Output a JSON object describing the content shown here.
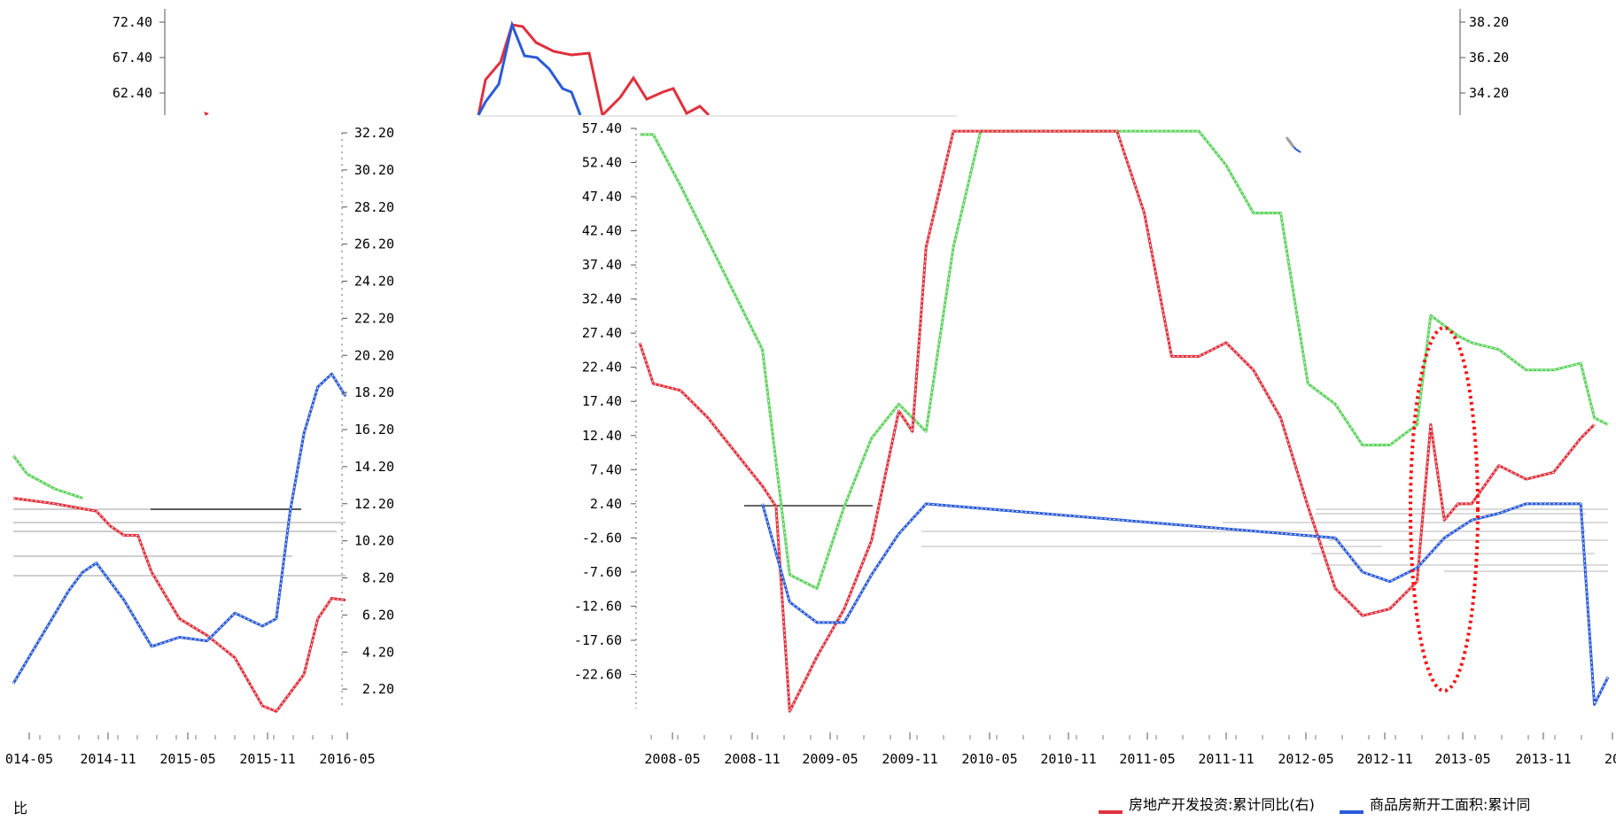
{
  "chart_data": [
    {
      "id": "left_top",
      "type": "line",
      "y_ticks": [
        "72.40",
        "67.40",
        "62.40"
      ]
    },
    {
      "id": "left",
      "type": "line",
      "y_ticks": [
        "32.20",
        "30.20",
        "28.20",
        "26.20",
        "24.20",
        "22.20",
        "20.20",
        "18.20",
        "16.20",
        "14.20",
        "12.20",
        "10.20",
        "8.20",
        "6.20",
        "4.20",
        "2.20"
      ],
      "ylim": [
        0.2,
        32.2
      ],
      "x_ticks": [
        "014-05",
        "2014-11",
        "2015-05",
        "2015-11",
        "2016-05"
      ],
      "series": [
        {
          "color": "#e0303c",
          "x": [
            "2014-05",
            "2014-08",
            "2014-11",
            "2014-12",
            "2015-01",
            "2015-02",
            "2015-03",
            "2015-05",
            "2015-07",
            "2015-09",
            "2015-11",
            "2015-12",
            "2016-01",
            "2016-02",
            "2016-03",
            "2016-04",
            "2016-05"
          ],
          "values": [
            12.5,
            12.2,
            11.8,
            11.0,
            10.5,
            10.5,
            8.5,
            6.0,
            5.1,
            3.9,
            1.3,
            1.0,
            2.0,
            3.0,
            6.0,
            7.1,
            7.0
          ]
        },
        {
          "color": "#2a5ad7",
          "x": [
            "2014-05",
            "2014-07",
            "2014-09",
            "2014-10",
            "2014-11",
            "2015-01",
            "2015-03",
            "2015-05",
            "2015-07",
            "2015-09",
            "2015-11",
            "2015-12",
            "2016-01",
            "2016-02",
            "2016-03",
            "2016-04",
            "2016-05"
          ],
          "values": [
            2.5,
            5.0,
            7.5,
            8.5,
            9.0,
            7.0,
            4.5,
            5.0,
            4.8,
            6.3,
            5.6,
            6.0,
            11.8,
            16.0,
            18.5,
            19.2,
            18.0
          ]
        },
        {
          "color": "#5ed25e",
          "x": [
            "2014-05",
            "2014-06",
            "2014-08",
            "2014-10"
          ],
          "values": [
            14.8,
            13.8,
            13.0,
            12.5
          ]
        }
      ]
    },
    {
      "id": "right_top",
      "type": "line",
      "y_ticks": [
        "38.20",
        "36.20",
        "34.20"
      ]
    },
    {
      "id": "main",
      "type": "line",
      "y_ticks": [
        "57.40",
        "52.40",
        "47.40",
        "42.40",
        "37.40",
        "32.40",
        "27.40",
        "22.40",
        "17.40",
        "12.40",
        "7.40",
        "2.40",
        "-2.60",
        "-7.60",
        "-12.60",
        "-17.60",
        "-22.60"
      ],
      "ylim": [
        -27.6,
        57.4
      ],
      "x_ticks": [
        "2008-05",
        "2008-11",
        "2009-05",
        "2009-11",
        "2010-05",
        "2010-11",
        "2011-05",
        "2011-11",
        "2012-05",
        "2012-11",
        "2013-05",
        "2013-11",
        "20"
      ],
      "legend": [
        {
          "label": "房地产开发投资:累计同比(右)",
          "color": "#e0303c"
        },
        {
          "label": "商品房新开工面积:累计同",
          "color": "#2a5ad7"
        }
      ],
      "annotation": "dotted red ellipse around 2013-03",
      "series": [
        {
          "color": "#5ed25e",
          "x": [
            "2008-02",
            "2008-03",
            "2008-05",
            "2008-07",
            "2008-09",
            "2008-11",
            "2009-01",
            "2009-03",
            "2009-05",
            "2009-07",
            "2009-09",
            "2009-11",
            "2010-01",
            "2010-03",
            "2010-05",
            "2010-07",
            "2010-09",
            "2010-11",
            "2011-01",
            "2011-03",
            "2011-05",
            "2011-07",
            "2011-09",
            "2011-11",
            "2012-01",
            "2012-03",
            "2012-05",
            "2012-07",
            "2012-09",
            "2012-11",
            "2012-12",
            "2013-02",
            "2013-03",
            "2013-05",
            "2013-07",
            "2013-09",
            "2013-11",
            "2013-12",
            "2014-01"
          ],
          "values": [
            56.5,
            56.5,
            49,
            41,
            33,
            25,
            -8,
            -10,
            2,
            12,
            17,
            13,
            40,
            57,
            57,
            57,
            57,
            57,
            57,
            57,
            57,
            57,
            52,
            45,
            45,
            20,
            17,
            11,
            11,
            14,
            30,
            27,
            26,
            25,
            22,
            22,
            23,
            15,
            14
          ]
        },
        {
          "color": "#e0303c",
          "x": [
            "2008-02",
            "2008-03",
            "2008-05",
            "2008-07",
            "2008-09",
            "2008-11",
            "2008-12",
            "2009-01",
            "2009-03",
            "2009-05",
            "2009-07",
            "2009-09",
            "2009-10",
            "2009-11",
            "2010-01",
            "2010-03",
            "2010-05",
            "2010-07",
            "2010-09",
            "2010-11",
            "2011-01",
            "2011-03",
            "2011-05",
            "2011-07",
            "2011-09",
            "2011-11",
            "2012-01",
            "2012-03",
            "2012-05",
            "2012-07",
            "2012-09",
            "2012-11",
            "2012-12",
            "2013-01",
            "2013-02",
            "2013-03",
            "2013-05",
            "2013-07",
            "2013-09",
            "2013-11",
            "2013-12"
          ],
          "values": [
            26,
            20,
            19,
            15,
            10,
            5,
            2,
            -28,
            -20,
            -13,
            -3,
            16,
            13,
            40,
            57,
            57,
            57,
            57,
            57,
            57,
            57,
            45,
            24,
            24,
            26,
            22,
            15,
            2,
            -10,
            -14,
            -13,
            -9,
            14,
            0,
            2.4,
            2.4,
            8,
            6,
            7,
            12,
            14
          ]
        },
        {
          "color": "#2a5ad7",
          "x": [
            "2008-11",
            "2009-01",
            "2009-03",
            "2009-05",
            "2009-07",
            "2009-09",
            "2009-11",
            "2012-05",
            "2012-07",
            "2012-09",
            "2012-11",
            "2013-01",
            "2013-03",
            "2013-05",
            "2013-07",
            "2013-09",
            "2013-11",
            "2013-12",
            "2014-01"
          ],
          "values": [
            2.4,
            -12,
            -15,
            -15,
            -8,
            -2,
            2.4,
            -2.6,
            -7.6,
            -9,
            -7,
            -2.6,
            0,
            1,
            2.4,
            2.4,
            2.4,
            -27,
            -23
          ]
        }
      ]
    }
  ],
  "bottom_left_text": "比"
}
